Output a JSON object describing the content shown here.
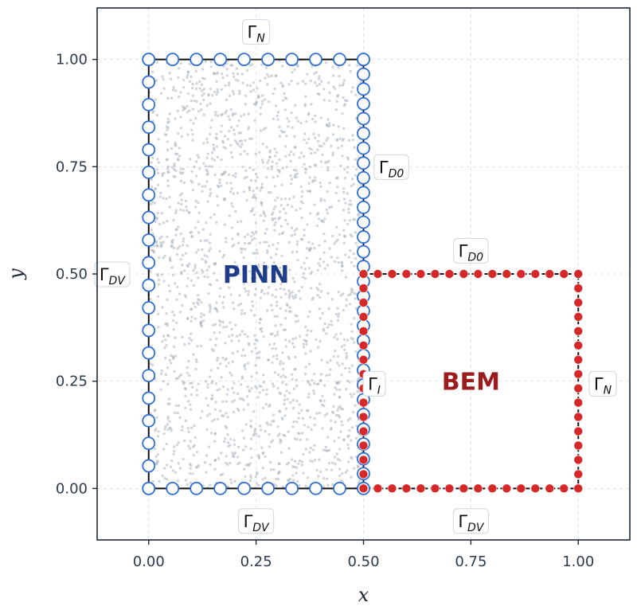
{
  "chart_data": {
    "type": "scatter",
    "xlabel": "x",
    "ylabel": "y",
    "xlim": [
      -0.12,
      1.12
    ],
    "ylim": [
      -0.12,
      1.12
    ],
    "xticks": [
      "0.00",
      "0.25",
      "0.50",
      "0.75",
      "1.00"
    ],
    "yticks": [
      "0.00",
      "0.25",
      "0.50",
      "0.75",
      "1.00"
    ],
    "grid": true,
    "colors": {
      "pinn_text": "#1f3c8a",
      "bem_text": "#9b1c1c",
      "pinn_marker_edge": "#2f6fd6",
      "bem_marker_fill": "#d62828",
      "boundary_line": "#111111",
      "collocation": "#9aa3b2",
      "frame": "#1e2a3a",
      "grid": "#dde3ea"
    },
    "regions": [
      {
        "name": "PINN",
        "x": [
          0.0,
          0.5
        ],
        "y": [
          0.0,
          1.0
        ],
        "label_pos": [
          0.25,
          0.5
        ]
      },
      {
        "name": "BEM",
        "x": [
          0.5,
          1.0
        ],
        "y": [
          0.0,
          0.5
        ],
        "label_pos": [
          0.75,
          0.25
        ]
      }
    ],
    "pinn_boundary_points": {
      "marker": "open-circle",
      "top": {
        "x_from": 0.0,
        "x_to": 0.5,
        "y": 1.0,
        "count": 10
      },
      "bottom": {
        "x_from": 0.0,
        "x_to": 0.5,
        "y": 0.0,
        "count": 10
      },
      "left": {
        "x": 0.0,
        "y_from": 0.0,
        "y_to": 1.0,
        "count": 20
      },
      "right": {
        "x": 0.5,
        "y_from": 0.0,
        "y_to": 1.0,
        "count": 30
      }
    },
    "bem_boundary_points": {
      "marker": "filled-circle",
      "top": {
        "x_from": 0.5,
        "x_to": 1.0,
        "y": 0.5,
        "count": 16
      },
      "bottom": {
        "x_from": 0.5,
        "x_to": 1.0,
        "y": 0.0,
        "count": 16
      },
      "left": {
        "x": 0.5,
        "y_from": 0.0,
        "y_to": 0.5,
        "count": 16
      },
      "right": {
        "x": 1.0,
        "y_from": 0.0,
        "y_to": 0.5,
        "count": 16
      }
    },
    "collocation_points": {
      "region": "PINN",
      "count": 2000
    },
    "boundary_labels": [
      {
        "base": "Γ",
        "sub": "N",
        "x": 0.25,
        "y": 1.065
      },
      {
        "base": "Γ",
        "sub": "D0",
        "x": 0.565,
        "y": 0.75
      },
      {
        "base": "Γ",
        "sub": "DV",
        "x": -0.085,
        "y": 0.5
      },
      {
        "base": "Γ",
        "sub": "D0",
        "x": 0.75,
        "y": 0.555
      },
      {
        "base": "Γ",
        "sub": "I",
        "x": 0.525,
        "y": 0.245
      },
      {
        "base": "Γ",
        "sub": "N",
        "x": 1.057,
        "y": 0.245
      },
      {
        "base": "Γ",
        "sub": "DV",
        "x": 0.25,
        "y": -0.075
      },
      {
        "base": "Γ",
        "sub": "DV",
        "x": 0.75,
        "y": -0.075
      }
    ]
  }
}
